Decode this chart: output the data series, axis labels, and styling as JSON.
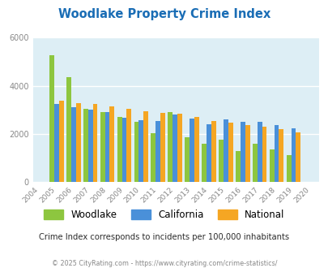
{
  "title": "Woodlake Property Crime Index",
  "years": [
    2004,
    2005,
    2006,
    2007,
    2008,
    2009,
    2010,
    2011,
    2012,
    2013,
    2014,
    2015,
    2016,
    2017,
    2018,
    2019,
    2020
  ],
  "woodlake": [
    null,
    5280,
    4360,
    3030,
    2920,
    2700,
    2500,
    2020,
    2900,
    1850,
    1610,
    1750,
    1290,
    1600,
    1370,
    1120,
    null
  ],
  "california": [
    null,
    3250,
    3100,
    3000,
    2900,
    2680,
    2560,
    2540,
    2800,
    2630,
    2390,
    2590,
    2490,
    2490,
    2360,
    2240,
    null
  ],
  "national": [
    null,
    3390,
    3290,
    3250,
    3130,
    3040,
    2940,
    2880,
    2850,
    2720,
    2540,
    2480,
    2370,
    2300,
    2200,
    2080,
    null
  ],
  "woodlake_color": "#8dc63f",
  "california_color": "#4a90d9",
  "national_color": "#f5a623",
  "bg_color": "#ddeef5",
  "ylim": [
    0,
    6000
  ],
  "yticks": [
    0,
    2000,
    4000,
    6000
  ],
  "bar_width": 0.28,
  "subtitle": "Crime Index corresponds to incidents per 100,000 inhabitants",
  "footer": "© 2025 CityRating.com - https://www.cityrating.com/crime-statistics/",
  "legend_labels": [
    "Woodlake",
    "California",
    "National"
  ],
  "title_color": "#1a6db5",
  "subtitle_color": "#2c2c2c",
  "footer_color": "#888888",
  "grid_color": "#c8dce8"
}
